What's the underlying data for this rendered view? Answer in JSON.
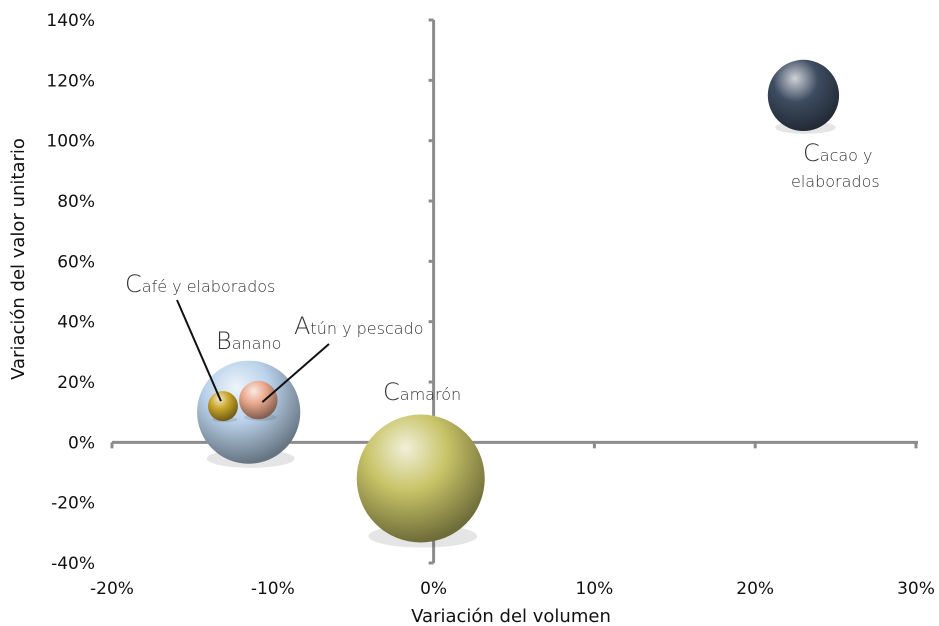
{
  "chart_data": {
    "type": "bubble",
    "xlabel": "Variación del volumen",
    "ylabel": "Variación del valor unitario",
    "xlim": [
      -0.2,
      0.3
    ],
    "ylim": [
      -0.4,
      1.4
    ],
    "x_ticks": [
      -0.2,
      -0.1,
      0.0,
      0.1,
      0.2,
      0.3
    ],
    "x_tick_labels": [
      "-20%",
      "-10%",
      "0%",
      "10%",
      "20%",
      "30%"
    ],
    "y_ticks": [
      -0.4,
      -0.2,
      0.0,
      0.2,
      0.4,
      0.6,
      0.8,
      1.0,
      1.2,
      1.4
    ],
    "y_tick_labels": [
      "-40%",
      "-20%",
      "0%",
      "20%",
      "40%",
      "60%",
      "80%",
      "100%",
      "120%",
      "140%"
    ],
    "grid": false,
    "legend": "none",
    "series": [
      {
        "name": "Banano",
        "label_parts": [
          "B",
          "anano"
        ],
        "x": -0.115,
        "y": 0.1,
        "size": 1.3,
        "color": "#b9d2ea"
      },
      {
        "name": "Camarón",
        "label_parts": [
          "C",
          "amarón"
        ],
        "x": -0.008,
        "y": -0.12,
        "size": 2.0,
        "color": "#c8c468"
      },
      {
        "name": "Cacao y elaborados",
        "label_parts": [
          "C",
          "acao y",
          "elaborados"
        ],
        "x": 0.23,
        "y": 1.15,
        "size": 0.62,
        "color": "#3e4c61"
      },
      {
        "name": "Atún y pescado",
        "label_parts": [
          "A",
          "tún y pescado"
        ],
        "x": -0.109,
        "y": 0.14,
        "size": 0.18,
        "color": "#e9a88d"
      },
      {
        "name": "Café y elaborados",
        "label_parts": [
          "C",
          "afé y elaborados"
        ],
        "x": -0.131,
        "y": 0.12,
        "size": 0.11,
        "color": "#c9a52a"
      }
    ]
  }
}
